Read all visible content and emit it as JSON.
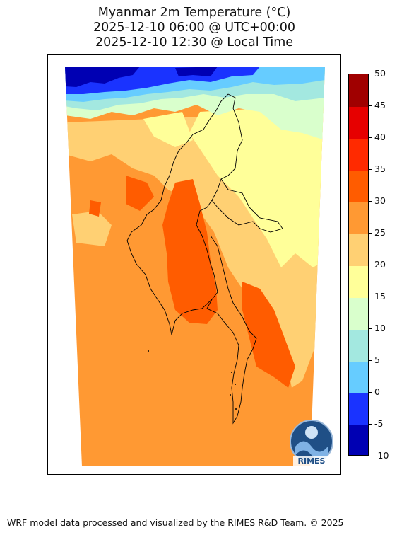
{
  "title": {
    "line1": "Myanmar 2m Temperature (°C)",
    "line2": "2025-12-10 06:00 @ UTC+00:00",
    "line3": "2025-12-10 12:30 @ Local Time"
  },
  "colorbar": {
    "levels": [
      -10,
      -5,
      0,
      5,
      10,
      15,
      20,
      25,
      30,
      35,
      40,
      45,
      50
    ],
    "labels": [
      "-10",
      "-5",
      "0",
      "5",
      "10",
      "15",
      "20",
      "25",
      "30",
      "35",
      "40",
      "45",
      "50"
    ],
    "colors": [
      "#0000b3",
      "#1a33ff",
      "#66ccff",
      "#a3e8e0",
      "#d9ffcc",
      "#ffff99",
      "#ffd073",
      "#ff9933",
      "#ff5c00",
      "#ff2a00",
      "#e60000",
      "#a00000"
    ]
  },
  "logo": {
    "text": "RIMES"
  },
  "footer": {
    "text": "WRF model data processed and visualized by the RIMES R&D Team. © 2025"
  }
}
